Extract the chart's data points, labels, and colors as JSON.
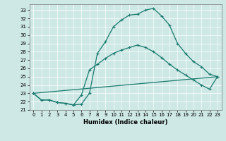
{
  "xlabel": "Humidex (Indice chaleur)",
  "bg_color": "#cde8e5",
  "line_color": "#1a7a6e",
  "xlim": [
    -0.5,
    23.5
  ],
  "ylim": [
    21,
    33.7
  ],
  "yticks": [
    21,
    22,
    23,
    24,
    25,
    26,
    27,
    28,
    29,
    30,
    31,
    32,
    33
  ],
  "xticks": [
    0,
    1,
    2,
    3,
    4,
    5,
    6,
    7,
    8,
    9,
    10,
    11,
    12,
    13,
    14,
    15,
    16,
    17,
    18,
    19,
    20,
    21,
    22,
    23
  ],
  "line1_x": [
    0,
    1,
    2,
    3,
    4,
    5,
    6,
    7,
    8,
    9,
    10,
    11,
    12,
    13,
    14,
    15,
    16,
    17,
    18,
    19,
    20,
    21,
    22,
    23
  ],
  "line1_y": [
    23.0,
    22.2,
    22.2,
    21.9,
    21.8,
    21.6,
    21.7,
    23.0,
    27.8,
    29.2,
    31.0,
    31.8,
    32.4,
    32.5,
    33.0,
    33.2,
    32.3,
    31.2,
    29.0,
    27.8,
    26.8,
    26.2,
    25.3,
    25.0
  ],
  "line2_x": [
    0,
    1,
    2,
    3,
    4,
    5,
    6,
    7,
    8,
    9,
    10,
    11,
    12,
    13,
    14,
    15,
    16,
    17,
    18,
    19,
    20,
    21,
    22,
    23
  ],
  "line2_y": [
    23.0,
    22.2,
    22.2,
    21.9,
    21.8,
    21.6,
    22.8,
    25.8,
    26.5,
    27.2,
    27.8,
    28.2,
    28.5,
    28.8,
    28.5,
    28.0,
    27.3,
    26.5,
    25.8,
    25.2,
    24.6,
    24.0,
    23.5,
    25.0
  ],
  "line3_x": [
    0,
    23
  ],
  "line3_y": [
    23.0,
    25.0
  ]
}
